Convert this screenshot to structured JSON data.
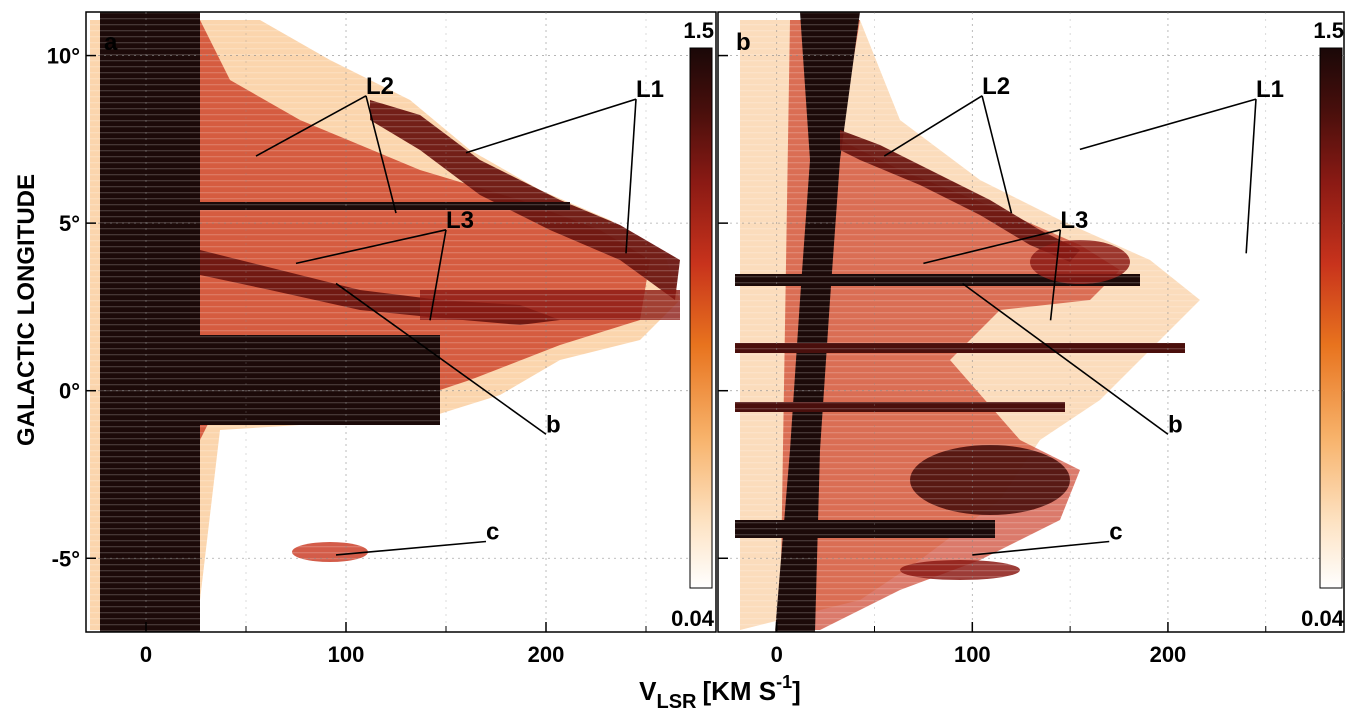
{
  "chart_data": [
    {
      "type": "heatmap",
      "panel_label": "a",
      "xlabel_main": "V",
      "xlabel_sub": "LSR",
      "xlabel_unit": "[KM S",
      "xlabel_exp": "-1",
      "xlabel_close": "]",
      "ylabel": "GALACTIC LONGITUDE",
      "xlim": [
        -30,
        285
      ],
      "ylim": [
        -7.2,
        11.3
      ],
      "xticks": [
        0,
        100,
        200
      ],
      "xtick_labels": [
        "0",
        "100",
        "200"
      ],
      "yticks": [
        10,
        5,
        0,
        -5
      ],
      "ytick_labels": [
        "10°",
        "5°",
        "0°",
        "-5°"
      ],
      "grid": true,
      "colorbar": {
        "max_label": "1.5",
        "min_label": "0.04",
        "range": [
          0.04,
          1.5
        ]
      },
      "annotations": [
        {
          "text": "L2",
          "x": 110,
          "y": 8.8,
          "pointers": [
            [
              55,
              7.0
            ],
            [
              125,
              5.3
            ]
          ]
        },
        {
          "text": "L1",
          "x": 245,
          "y": 8.7,
          "pointers": [
            [
              160,
              7.1
            ],
            [
              240,
              4.1
            ]
          ]
        },
        {
          "text": "L3",
          "x": 150,
          "y": 4.8,
          "pointers": [
            [
              75,
              3.8
            ],
            [
              142,
              2.1
            ]
          ]
        },
        {
          "text": "b",
          "x": 200,
          "y": -1.3,
          "pointers": [
            [
              95,
              3.2
            ]
          ]
        },
        {
          "text": "c",
          "x": 170,
          "y": -4.5,
          "pointers": [
            [
              95,
              -4.9
            ]
          ]
        }
      ]
    },
    {
      "type": "heatmap",
      "panel_label": "b",
      "xlim": [
        -30,
        290
      ],
      "ylim": [
        -7.2,
        11.3
      ],
      "xticks": [
        0,
        100,
        200
      ],
      "xtick_labels": [
        "0",
        "100",
        "200"
      ],
      "grid": true,
      "colorbar": {
        "max_label": "1.5",
        "min_label": "0.04",
        "range": [
          0.04,
          1.5
        ]
      },
      "annotations": [
        {
          "text": "L2",
          "x": 105,
          "y": 8.8,
          "pointers": [
            [
              55,
              7.0
            ],
            [
              120,
              5.3
            ]
          ]
        },
        {
          "text": "L1",
          "x": 245,
          "y": 8.7,
          "pointers": [
            [
              155,
              7.2
            ],
            [
              240,
              4.1
            ]
          ]
        },
        {
          "text": "L3",
          "x": 145,
          "y": 4.8,
          "pointers": [
            [
              75,
              3.8
            ],
            [
              140,
              2.1
            ]
          ]
        },
        {
          "text": "b",
          "x": 200,
          "y": -1.3,
          "pointers": [
            [
              95,
              3.2
            ]
          ]
        },
        {
          "text": "c",
          "x": 170,
          "y": -4.5,
          "pointers": [
            [
              100,
              -4.9
            ]
          ]
        }
      ]
    }
  ]
}
